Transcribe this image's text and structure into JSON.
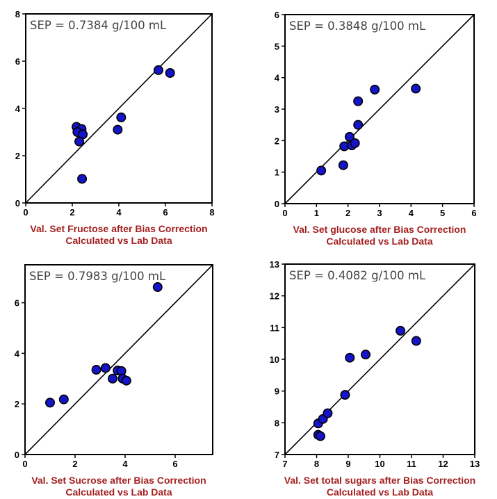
{
  "chart_data": [
    {
      "type": "scatter",
      "annotation": "SEP = 0.7384 g/100 mL",
      "xlabel": "Val. Set Fructose after Bias Correction",
      "subtitle": "Calculated vs Lab Data",
      "xlim": [
        0,
        8
      ],
      "ylim": [
        0,
        8
      ],
      "xticks": [
        "0",
        "2",
        "4",
        "6",
        "8"
      ],
      "yticks": [
        "0",
        "2",
        "4",
        "6",
        "8"
      ],
      "identity_line": true,
      "marker_color": "#1414c8",
      "points": [
        {
          "x": 2.18,
          "y": 3.22
        },
        {
          "x": 2.4,
          "y": 3.13
        },
        {
          "x": 2.22,
          "y": 3.0
        },
        {
          "x": 2.45,
          "y": 2.9
        },
        {
          "x": 2.3,
          "y": 2.6
        },
        {
          "x": 2.42,
          "y": 1.02
        },
        {
          "x": 3.95,
          "y": 3.1
        },
        {
          "x": 4.1,
          "y": 3.62
        },
        {
          "x": 5.7,
          "y": 5.62
        },
        {
          "x": 6.2,
          "y": 5.5
        }
      ]
    },
    {
      "type": "scatter",
      "annotation": "SEP = 0.3848 g/100 mL",
      "xlabel": "Val. Set glucose after Bias Correction",
      "subtitle": "Calculated vs Lab Data",
      "xlim": [
        0,
        6
      ],
      "ylim": [
        0,
        6
      ],
      "xticks": [
        "0",
        "1",
        "2",
        "3",
        "4",
        "5",
        "6"
      ],
      "yticks": [
        "0",
        "1",
        "2",
        "3",
        "4",
        "5",
        "6"
      ],
      "identity_line": true,
      "marker_color": "#1414c8",
      "points": [
        {
          "x": 1.15,
          "y": 1.05
        },
        {
          "x": 1.85,
          "y": 1.22
        },
        {
          "x": 1.88,
          "y": 1.82
        },
        {
          "x": 2.05,
          "y": 2.12
        },
        {
          "x": 2.12,
          "y": 1.85
        },
        {
          "x": 2.22,
          "y": 1.92
        },
        {
          "x": 2.32,
          "y": 2.5
        },
        {
          "x": 2.32,
          "y": 3.25
        },
        {
          "x": 2.85,
          "y": 3.62
        },
        {
          "x": 4.15,
          "y": 3.65
        }
      ]
    },
    {
      "type": "scatter",
      "annotation": "SEP = 0.7983 g/100 mL",
      "xlabel": "Val. Set Sucrose after Bias Correction",
      "subtitle": "Calculated vs Lab Data",
      "xlim": [
        0,
        7.5
      ],
      "ylim": [
        0,
        7.5
      ],
      "xticks": [
        "0",
        "2",
        "4",
        "6"
      ],
      "yticks": [
        "0",
        "2",
        "4",
        "6"
      ],
      "identity_line": true,
      "marker_color": "#1414c8",
      "points": [
        {
          "x": 1.0,
          "y": 2.05
        },
        {
          "x": 1.55,
          "y": 2.18
        },
        {
          "x": 2.85,
          "y": 3.35
        },
        {
          "x": 3.22,
          "y": 3.42
        },
        {
          "x": 3.5,
          "y": 3.0
        },
        {
          "x": 3.7,
          "y": 3.32
        },
        {
          "x": 3.85,
          "y": 3.3
        },
        {
          "x": 3.9,
          "y": 3.0
        },
        {
          "x": 4.05,
          "y": 2.92
        },
        {
          "x": 5.3,
          "y": 6.62
        }
      ]
    },
    {
      "type": "scatter",
      "annotation": "SEP = 0.4082 g/100 mL",
      "xlabel": "Val. Set total sugars after Bias Correction",
      "subtitle": "Calculated vs Lab Data",
      "xlim": [
        7,
        13
      ],
      "ylim": [
        7,
        13
      ],
      "xticks": [
        "7",
        "8",
        "9",
        "10",
        "11",
        "12",
        "13"
      ],
      "yticks": [
        "7",
        "8",
        "9",
        "10",
        "11",
        "12",
        "13"
      ],
      "identity_line": true,
      "marker_color": "#1414c8",
      "points": [
        {
          "x": 8.05,
          "y": 7.98
        },
        {
          "x": 8.05,
          "y": 7.62
        },
        {
          "x": 8.12,
          "y": 7.58
        },
        {
          "x": 8.2,
          "y": 8.12
        },
        {
          "x": 8.35,
          "y": 8.3
        },
        {
          "x": 8.9,
          "y": 8.88
        },
        {
          "x": 9.05,
          "y": 10.05
        },
        {
          "x": 9.55,
          "y": 10.15
        },
        {
          "x": 10.65,
          "y": 10.9
        },
        {
          "x": 11.15,
          "y": 10.58
        }
      ]
    }
  ]
}
